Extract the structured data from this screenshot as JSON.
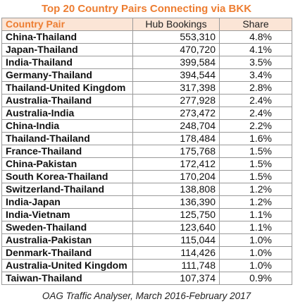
{
  "title": "Top 20  Country Pairs Connecting via BKK",
  "headers": {
    "pair": "Country Pair",
    "bookings": "Hub Bookings",
    "share": "Share"
  },
  "rows": [
    {
      "pair": "China-Thailand",
      "bookings": "553,310",
      "share": "4.8%"
    },
    {
      "pair": "Japan-Thailand",
      "bookings": "470,720",
      "share": "4.1%"
    },
    {
      "pair": "India-Thailand",
      "bookings": "399,584",
      "share": "3.5%"
    },
    {
      "pair": "Germany-Thailand",
      "bookings": "394,544",
      "share": "3.4%"
    },
    {
      "pair": "Thailand-United Kingdom",
      "bookings": "317,398",
      "share": "2.8%"
    },
    {
      "pair": "Australia-Thailand",
      "bookings": "277,928",
      "share": "2.4%"
    },
    {
      "pair": "Australia-India",
      "bookings": "273,472",
      "share": "2.4%"
    },
    {
      "pair": "China-India",
      "bookings": "248,704",
      "share": "2.2%"
    },
    {
      "pair": "Thailand-Thailand",
      "bookings": "178,484",
      "share": "1.6%"
    },
    {
      "pair": "France-Thailand",
      "bookings": "175,768",
      "share": "1.5%"
    },
    {
      "pair": "China-Pakistan",
      "bookings": "172,412",
      "share": "1.5%"
    },
    {
      "pair": "South Korea-Thailand",
      "bookings": "170,204",
      "share": "1.5%"
    },
    {
      "pair": "Switzerland-Thailand",
      "bookings": "138,808",
      "share": "1.2%"
    },
    {
      "pair": "India-Japan",
      "bookings": "136,390",
      "share": "1.2%"
    },
    {
      "pair": "India-Vietnam",
      "bookings": "125,750",
      "share": "1.1%"
    },
    {
      "pair": "Sweden-Thailand",
      "bookings": "123,640",
      "share": "1.1%"
    },
    {
      "pair": "Australia-Pakistan",
      "bookings": "115,044",
      "share": "1.0%"
    },
    {
      "pair": "Denmark-Thailand",
      "bookings": "114,426",
      "share": "1.0%"
    },
    {
      "pair": "Australia-United Kingdom",
      "bookings": "111,748",
      "share": "1.0%"
    },
    {
      "pair": "Taiwan-Thailand",
      "bookings": "107,374",
      "share": "0.9%"
    }
  ],
  "source": "OAG Traffic Analyser, March 2016-February 2017",
  "colors": {
    "title": "#ED7D31",
    "header_bg": "#FBE5D6",
    "border": "#9a9a9a"
  }
}
